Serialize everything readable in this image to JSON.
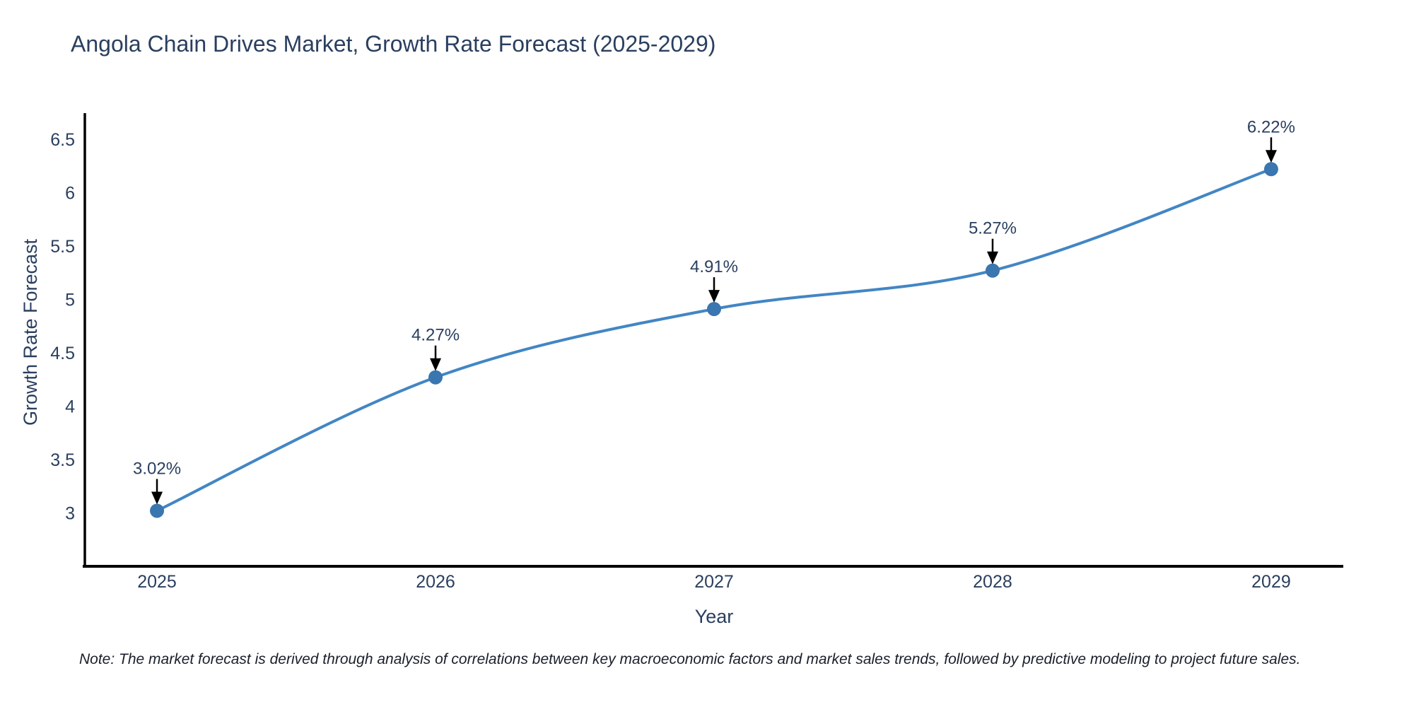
{
  "title": "Angola Chain Drives Market, Growth Rate Forecast (2025-2029)",
  "note": "Note: The market forecast is derived through analysis of correlations between key macroeconomic factors and market sales trends, followed by predictive modeling to project future sales.",
  "chart_data": {
    "type": "line",
    "title": "Angola Chain Drives Market, Growth Rate Forecast (2025-2029)",
    "xlabel": "Year",
    "ylabel": "Growth Rate Forecast",
    "categories": [
      "2025",
      "2026",
      "2027",
      "2028",
      "2029"
    ],
    "x": [
      2025,
      2026,
      2027,
      2028,
      2029
    ],
    "series": [
      {
        "name": "Growth Rate Forecast",
        "values": [
          3.02,
          4.27,
          4.91,
          5.27,
          6.22
        ]
      }
    ],
    "point_labels": [
      "3.02%",
      "4.27%",
      "4.91%",
      "5.27%",
      "6.22%"
    ],
    "line_shape": "spline",
    "grid": false,
    "legend_position": "none",
    "yticks": [
      3,
      3.5,
      4,
      4.5,
      5,
      5.5,
      6,
      6.5
    ],
    "ylim": [
      2.5,
      6.745
    ],
    "xlim": [
      2024.741,
      2029.259
    ],
    "colors": {
      "line": "#4286c4",
      "marker": "#3a76b0",
      "axis_line": "#000000",
      "tick_text": "#2a3f5f",
      "axis_title_text": "#2a3f5f",
      "annotation_text": "#2a3f5f",
      "annotation_arrow": "#000000",
      "background": "#ffffff"
    }
  }
}
